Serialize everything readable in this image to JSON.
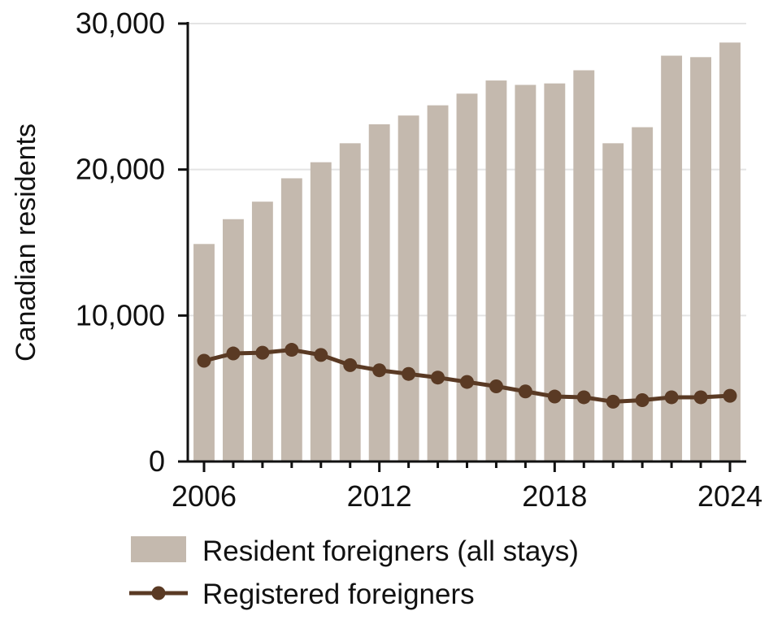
{
  "chart_data": {
    "type": "bar",
    "x": [
      2006,
      2007,
      2008,
      2009,
      2010,
      2011,
      2012,
      2013,
      2014,
      2015,
      2016,
      2017,
      2018,
      2019,
      2020,
      2021,
      2022,
      2023,
      2024
    ],
    "series": [
      {
        "name": "Resident foreigners (all stays)",
        "type": "bar",
        "color": "#c4b9ae",
        "values": [
          14900,
          16600,
          17800,
          19400,
          20500,
          21800,
          23100,
          23700,
          24400,
          25200,
          26100,
          25800,
          25900,
          26800,
          21800,
          22900,
          27800,
          27700,
          28700
        ]
      },
      {
        "name": "Registered foreigners",
        "type": "line",
        "color": "#5a3a24",
        "values": [
          6900,
          7400,
          7450,
          7650,
          7300,
          6600,
          6250,
          6000,
          5750,
          5450,
          5150,
          4800,
          4450,
          4400,
          4100,
          4200,
          4400,
          4400,
          4500
        ]
      }
    ],
    "ylabel": "Canadian residents",
    "xlabel": "",
    "ylim": [
      0,
      30000
    ],
    "y_ticks": [
      0,
      10000,
      20000,
      30000
    ],
    "y_tick_labels": [
      "0",
      "10,000",
      "20,000",
      "30,000"
    ],
    "x_ticks": [
      2006,
      2012,
      2018,
      2024
    ],
    "x_tick_labels": [
      "2006",
      "2012",
      "2018",
      "2024"
    ],
    "grid": "horizontal",
    "legend_position": "bottom"
  }
}
